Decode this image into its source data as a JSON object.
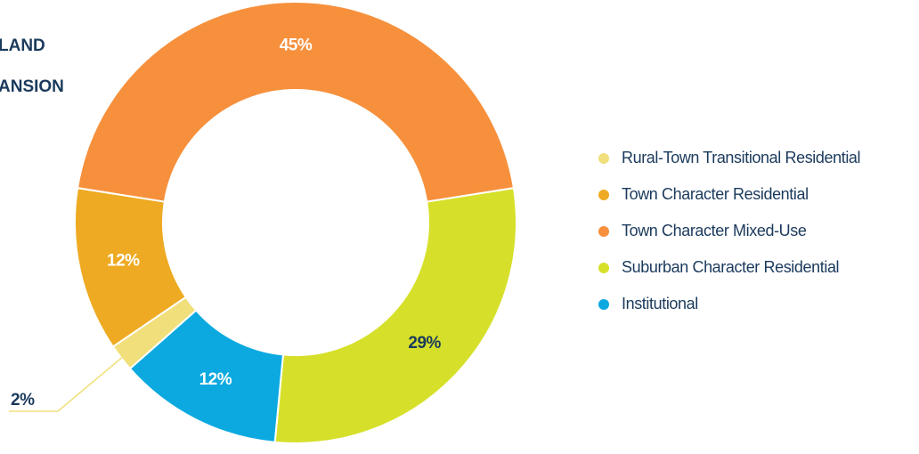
{
  "chart_data": {
    "type": "donut",
    "title_lines": [
      "LAND",
      "ANSION"
    ],
    "categories": [
      "Rural-Town Transitional Residential",
      "Town Character Residential",
      "Town Character Mixed-Use",
      "Suburban Character Residential",
      "Institutional"
    ],
    "values": [
      2,
      12,
      45,
      29,
      12
    ],
    "value_labels": [
      "2%",
      "12%",
      "45%",
      "29%",
      "12%"
    ],
    "colors": [
      "#f0df7a",
      "#eeaa22",
      "#f7903c",
      "#d6e02a",
      "#0ba9e0"
    ],
    "legend": "right"
  }
}
